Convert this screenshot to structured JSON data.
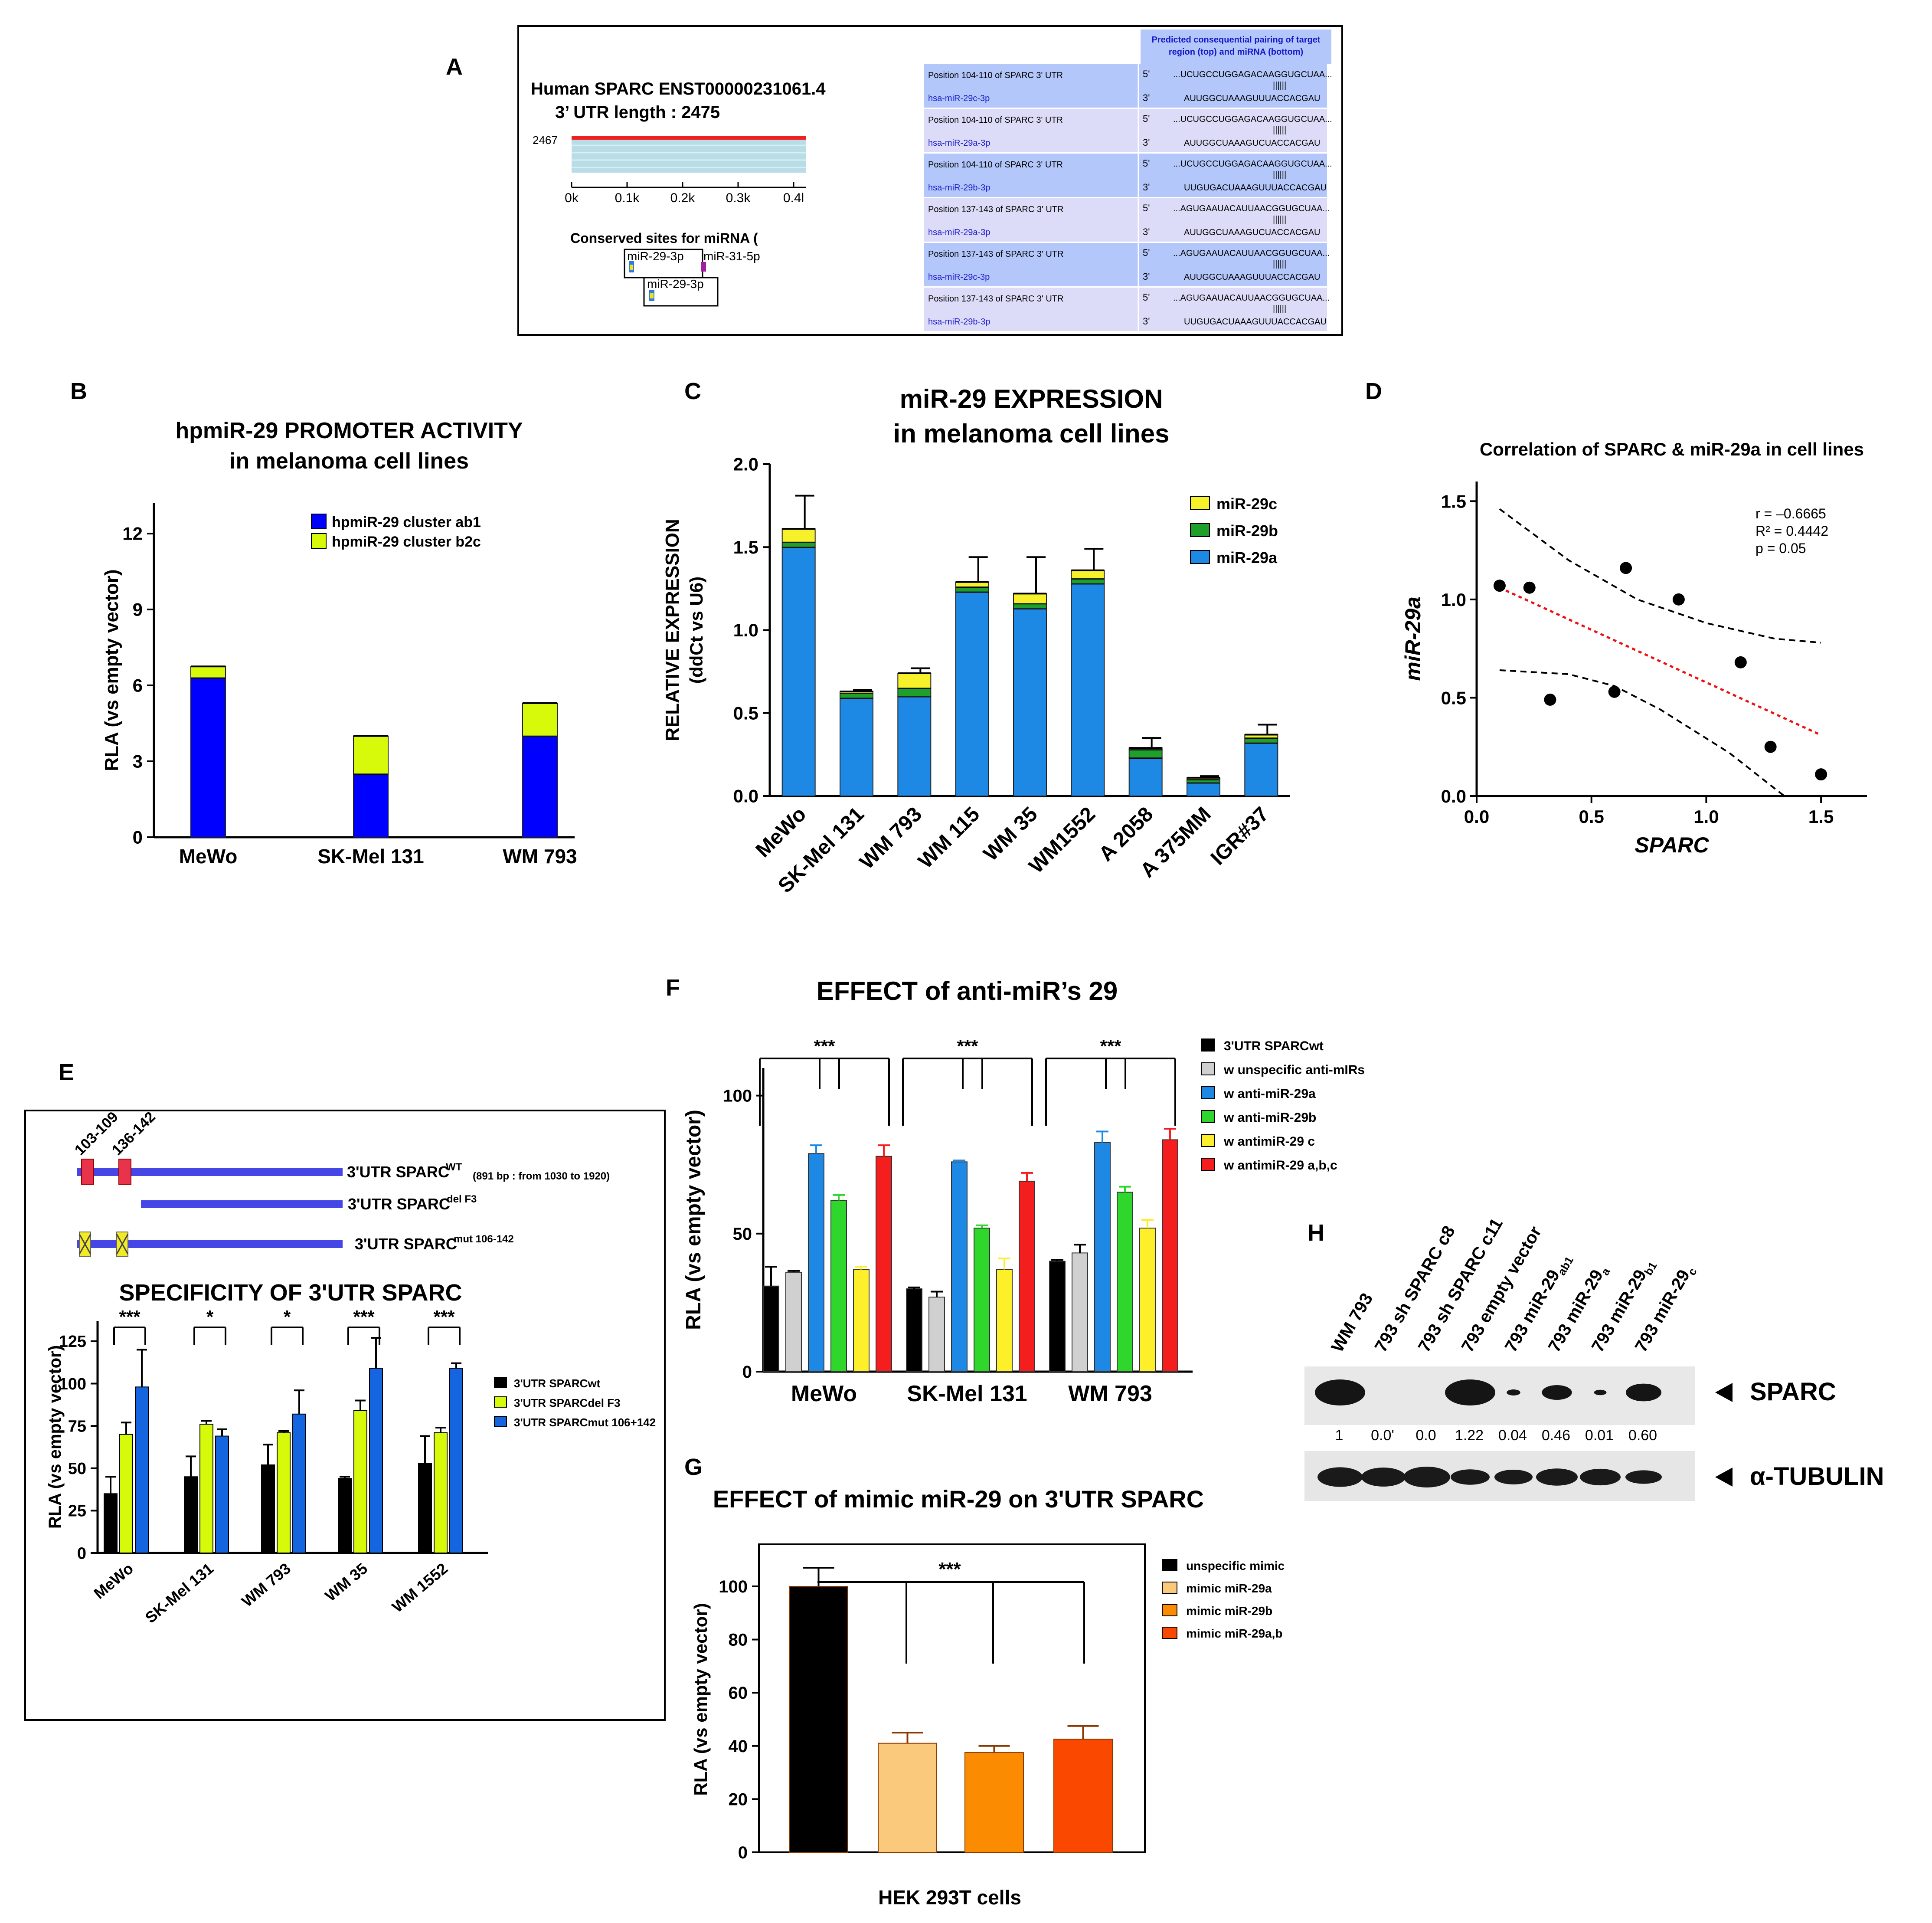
{
  "colors": {
    "blue": "#0000ff",
    "lime": "#d7fa0a",
    "lightblue": "#1e88e5",
    "green": "#1fa02b",
    "yellow": "#f6f12a",
    "black": "#000000",
    "grey": "#d0d0d0",
    "red": "#f51e1e",
    "green2": "#2fd62b",
    "yellow2": "#fdf02a",
    "blueE": "#1565e0",
    "mimicA": "#fbc97b",
    "mimicB": "#fb8b00",
    "mimicAB": "#fb4800",
    "panelAblue": "#b4c7fa",
    "panelAlav": "#dcdcf8",
    "utrLine": "#4646e6",
    "site": "#e8334a"
  },
  "panels": {
    "a": "A",
    "b": "B",
    "c": "C",
    "d": "D",
    "e": "E",
    "f": "F",
    "g": "G",
    "h": "H"
  },
  "panelA": {
    "title1": "Human SPARC ENST00000231061.4",
    "title2": "3’ UTR length : 2475",
    "track_label": "2467",
    "ticks": [
      "0k",
      "0.1k",
      "0.2k",
      "0.3k",
      "0.4l"
    ],
    "conserved": "Conserved sites for miRNA (",
    "site1": "miR-29-3p",
    "site2": "miR-31-5p",
    "site3": "miR-29-3p",
    "table_header": "Predicted consequential pairing of target region (top) and miRNA (bottom)",
    "rows": [
      {
        "pos": "Position 104-110 of SPARC 3' UTR",
        "mirna": "hsa-miR-29c-3p",
        "p5": "5'",
        "seq1": "...UCUGCCUGGAGACAAGGUGCUAA...",
        "bars": "||||||",
        "p3": "3'",
        "seq2": "AUUGGCUAAAGUUUACCACGAU"
      },
      {
        "pos": "Position 104-110 of SPARC 3' UTR",
        "mirna": "hsa-miR-29a-3p",
        "p5": "5'",
        "seq1": "...UCUGCCUGGAGACAAGGUGCUAA...",
        "bars": "||||||",
        "p3": "3'",
        "seq2": "AUUGGCUAAAGUCUACCACGAU"
      },
      {
        "pos": "Position 104-110 of SPARC 3' UTR",
        "mirna": "hsa-miR-29b-3p",
        "p5": "5'",
        "seq1": "...UCUGCCUGGAGACAAGGUGCUAA...",
        "bars": "||||||",
        "p3": "3'",
        "seq2": "UUGUGACUAAAGUUUACCACGAU"
      },
      {
        "pos": "Position 137-143 of SPARC 3' UTR",
        "mirna": "hsa-miR-29a-3p",
        "p5": "5'",
        "seq1": "...AGUGAAUACAUUAACGGUGCUAA...",
        "bars": "||||||",
        "p3": "3'",
        "seq2": "AUUGGCUAAAGUCUACCACGAU"
      },
      {
        "pos": "Position 137-143 of SPARC 3' UTR",
        "mirna": "hsa-miR-29c-3p",
        "p5": "5'",
        "seq1": "...AGUGAAUACAUUAACGGUGCUAA...",
        "bars": "||||||",
        "p3": "3'",
        "seq2": "AUUGGCUAAAGUUUACCACGAU"
      },
      {
        "pos": "Position 137-143 of SPARC 3' UTR",
        "mirna": "hsa-miR-29b-3p",
        "p5": "5'",
        "seq1": "...AGUGAAUACAUUAACGGUGCUAA...",
        "bars": "||||||",
        "p3": "3'",
        "seq2": "UUGUGACUAAAGUUUACCACGAU"
      }
    ]
  },
  "panelE": {
    "site1": "103-109",
    "site2": "136-142",
    "wt_label": "3'UTR SPARC",
    "wt_sup": "WT",
    "wt_note": "(891 bp : from 1030 to 1920)",
    "del_label": "3'UTR SPARC",
    "del_sup": "del F3",
    "mut_label": "3'UTR SPARC",
    "mut_sup": "mut 106-142"
  },
  "panelH": {
    "lanes": [
      "WM 793",
      "793 sh SPARC c8",
      "793 sh SPARC c11",
      "793 empty vector",
      "793 miR-29ab1",
      "793 miR-29a",
      "793 miR-29b1",
      "793 miR-29c"
    ],
    "values": [
      "1",
      "0.0'",
      "0.0",
      "1.22",
      "0.04",
      "0.46",
      "0.01",
      "0.60"
    ],
    "band1": "SPARC",
    "band2": "α-TUBULIN",
    "sparc_levels": [
      1.0,
      0,
      0,
      1.22,
      0.04,
      0.46,
      0.01,
      0.6
    ],
    "tubulin_levels": [
      0.9,
      0.85,
      1.0,
      0.55,
      0.5,
      0.7,
      0.65,
      0.4
    ]
  },
  "chart_data": [
    {
      "id": "B",
      "type": "bar",
      "title": "hpmiR-29 PROMOTER ACTIVITY",
      "subtitle": "in melanoma cell lines",
      "ylabel": "RLA (vs empty vector)",
      "ylim": [
        0,
        13.2
      ],
      "yticks": [
        0,
        3,
        6,
        9,
        12
      ],
      "categories": [
        "MeWo",
        "SK-Mel 131",
        "WM 793"
      ],
      "stacked": true,
      "series": [
        {
          "name": "hpmiR-29 cluster ab1",
          "color": "#0000ff",
          "values": [
            6.3,
            2.5,
            4.0
          ]
        },
        {
          "name": "hpmiR-29 cluster b2c",
          "color": "#d7fa0a",
          "values": [
            0.45,
            1.5,
            1.3
          ]
        }
      ]
    },
    {
      "id": "C",
      "type": "bar",
      "title": "miR-29 EXPRESSION",
      "subtitle": "in melanoma cell lines",
      "ylabel": "RELATIVE EXPRESSION",
      "ylabel2": "(ddCt vs U6)",
      "ylim": [
        0,
        2.0
      ],
      "yticks": [
        "0.0",
        "0.5",
        "1.0",
        "1.5",
        "2.0"
      ],
      "categories": [
        "MeWo",
        "SK-Mel 131",
        "WM 793",
        "WM 115",
        "WM 35",
        "WM1552",
        "A 2058",
        "A 375MM",
        "IGR#37"
      ],
      "stacked": true,
      "series": [
        {
          "name": "miR-29a",
          "color": "#1e88e5",
          "values": [
            1.5,
            0.59,
            0.6,
            1.23,
            1.13,
            1.28,
            0.23,
            0.08,
            0.32
          ]
        },
        {
          "name": "miR-29b",
          "color": "#1fa02b",
          "values": [
            0.03,
            0.03,
            0.05,
            0.03,
            0.03,
            0.03,
            0.05,
            0.02,
            0.03
          ]
        },
        {
          "name": "miR-29c",
          "color": "#f6f12a",
          "values": [
            0.08,
            0.01,
            0.09,
            0.03,
            0.06,
            0.05,
            0.01,
            0.01,
            0.02
          ]
        }
      ],
      "errors": [
        0.2,
        0.01,
        0.03,
        0.15,
        0.22,
        0.13,
        0.06,
        0.01,
        0.06
      ]
    },
    {
      "id": "D",
      "type": "scatter",
      "title": "Correlation of SPARC & miR-29a in cell lines",
      "xlabel": "SPARC",
      "ylabel": "miR-29a",
      "xlim": [
        0,
        1.7
      ],
      "ylim": [
        0,
        1.6
      ],
      "xticks": [
        "0.0",
        "0.5",
        "1.0",
        "1.5"
      ],
      "yticks": [
        "0.0",
        "0.5",
        "1.0",
        "1.5"
      ],
      "x": [
        0.1,
        0.23,
        0.32,
        0.6,
        0.65,
        0.88,
        1.15,
        1.28,
        1.5
      ],
      "y": [
        1.07,
        1.06,
        0.49,
        0.53,
        1.16,
        1.0,
        0.68,
        0.25,
        0.11
      ],
      "fit": {
        "x": [
          0.1,
          1.5
        ],
        "y": [
          1.06,
          0.31
        ]
      },
      "ci_upper": {
        "x": [
          0.1,
          0.4,
          0.7,
          1.0,
          1.3,
          1.5
        ],
        "y": [
          1.46,
          1.2,
          1.0,
          0.88,
          0.8,
          0.78
        ]
      },
      "ci_lower": {
        "x": [
          0.1,
          0.4,
          0.6,
          0.8,
          1.1,
          1.34
        ],
        "y": [
          0.64,
          0.62,
          0.56,
          0.44,
          0.22,
          0.0
        ]
      },
      "stats": [
        "r = –0.6665",
        "R² = 0.4442",
        "p = 0.05"
      ]
    },
    {
      "id": "E",
      "type": "bar",
      "title": "SPECIFICITY OF 3'UTR SPARC",
      "ylabel": "RLA (vs empty vector)",
      "ylim": [
        0,
        137
      ],
      "yticks": [
        0,
        25,
        50,
        75,
        100,
        125
      ],
      "categories": [
        "MeWo",
        "SK-Mel 131",
        "WM 793",
        "WM 35",
        "WM 1552"
      ],
      "series": [
        {
          "name": "3'UTR SPARCwt",
          "color": "#000000",
          "values": [
            35,
            45,
            52,
            44,
            53
          ],
          "errors": [
            10,
            12,
            12,
            1,
            16
          ]
        },
        {
          "name": "3'UTR SPARCdel F3",
          "color": "#d7fa0a",
          "values": [
            70,
            76,
            71,
            84,
            71
          ],
          "errors": [
            7,
            2,
            1,
            6,
            3
          ]
        },
        {
          "name": "3'UTR SPARCmut 106+142",
          "color": "#1565e0",
          "values": [
            98,
            69,
            82,
            109,
            109
          ],
          "errors": [
            22,
            4,
            14,
            18,
            3
          ]
        }
      ],
      "significance": [
        "***",
        "*",
        "*",
        "***",
        "***"
      ]
    },
    {
      "id": "F",
      "type": "bar",
      "title": "EFFECT of anti-miR’s 29",
      "ylabel": "RLA (vs empty vector)",
      "ylim": [
        0,
        110
      ],
      "yticks": [
        0,
        50,
        100
      ],
      "categories": [
        "MeWo",
        "SK-Mel 131",
        "WM 793"
      ],
      "series": [
        {
          "name": "3'UTR SPARCwt",
          "color": "#000000",
          "values": [
            31,
            30,
            40
          ],
          "errors": [
            7,
            0.5,
            0.5
          ]
        },
        {
          "name": "w unspecific anti-mIRs",
          "color": "#d0d0d0",
          "values": [
            36,
            27,
            43
          ],
          "errors": [
            0.5,
            2,
            3
          ]
        },
        {
          "name": "w anti-miR-29a",
          "color": "#1e88e5",
          "values": [
            79,
            76,
            83
          ],
          "errors": [
            3,
            0.5,
            4
          ]
        },
        {
          "name": "w anti-miR-29b",
          "color": "#2fd62b",
          "values": [
            62,
            52,
            65
          ],
          "errors": [
            2,
            1,
            2
          ]
        },
        {
          "name": "w antimiR-29 c",
          "color": "#fdf02a",
          "values": [
            37,
            37,
            52
          ],
          "errors": [
            1,
            4,
            3
          ]
        },
        {
          "name": "w antimiR-29 a,b,c",
          "color": "#f51e1e",
          "values": [
            78,
            69,
            84
          ],
          "errors": [
            4,
            3,
            4
          ]
        }
      ],
      "significance": [
        "***",
        "***",
        "***"
      ]
    },
    {
      "id": "G",
      "type": "bar",
      "title": "EFFECT of mimic miR-29 on 3'UTR SPARC",
      "xlabel": "HEK 293T cells",
      "ylabel": "RLA (vs empty vector)",
      "ylim": [
        0,
        115
      ],
      "yticks": [
        0,
        20,
        40,
        60,
        80,
        100
      ],
      "categories": [
        "unspecific mimic",
        "mimic miR-29a",
        "mimic miR-29b",
        "mimic miR-29a,b"
      ],
      "values": [
        100,
        41,
        37.5,
        42.5
      ],
      "errors": [
        7,
        4,
        2.5,
        5
      ],
      "colors": [
        "#000000",
        "#fbc97b",
        "#fb8b00",
        "#fb4800"
      ],
      "significance": "***"
    }
  ]
}
